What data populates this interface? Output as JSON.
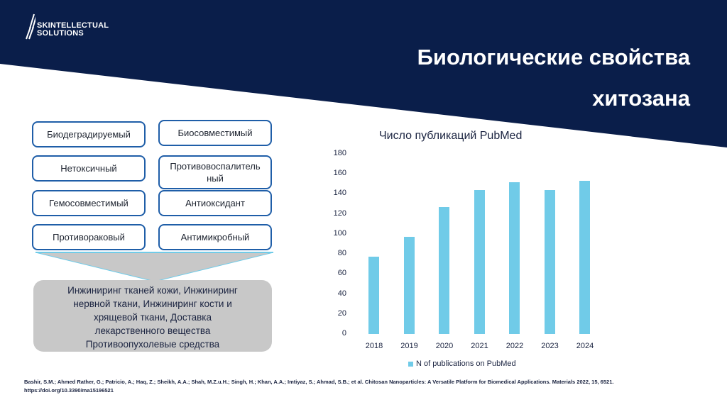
{
  "brand": {
    "logo_line1": "SKINTELLECTUAL",
    "logo_line2": "SOLUTIONS",
    "header_color": "#0a1e4a"
  },
  "slide": {
    "title_line1": "Биологические свойства",
    "title_line2": "хитозана"
  },
  "properties": {
    "left": [
      "Биодеградируемый",
      "Нетоксичный",
      "Гемосовместимый",
      "Противораковый"
    ],
    "right": [
      "Биосовместимый",
      "Противовоспалитель ный",
      "Антиоксидант",
      "Антимикробный"
    ]
  },
  "applications": {
    "lines": [
      "Инжиниринг тканей кожи, Инжиниринг",
      "нервной ткани, Инжиниринг кости и",
      "хрящевой ткани, Доставка",
      "лекарственного вещества",
      "Противоопухолевые средства"
    ]
  },
  "chart_data": {
    "type": "bar",
    "title": "Число публикаций PubMed",
    "categories": [
      "2018",
      "2019",
      "2020",
      "2021",
      "2022",
      "2023",
      "2024"
    ],
    "series": [
      {
        "name": "N of publications on PubMed",
        "values": [
          77,
          97,
          127,
          144,
          152,
          144,
          153
        ],
        "color": "#70cbe8"
      }
    ],
    "xlabel": "",
    "ylabel": "",
    "ylim": [
      0,
      180
    ],
    "yticks": [
      "180",
      "160",
      "140",
      "120",
      "100",
      "80",
      "60",
      "40",
      "20",
      "0"
    ],
    "grid": false,
    "legend_position": "bottom"
  },
  "reference": {
    "line1": "Bashir, S.M.; Ahmed Rather, G.; Patricio, A.; Haq, Z.; Sheikh, A.A.; Shah, M.Z.u.H.; Singh, H.; Khan, A.A.; Imtiyaz, S.; Ahmad, S.B.; et al. Chitosan Nanoparticles: A Versatile Platform for Biomedical Applications.   Materials 2022, 15, 6521.",
    "line2": "https://doi.org/10.3390/ma15196521"
  }
}
